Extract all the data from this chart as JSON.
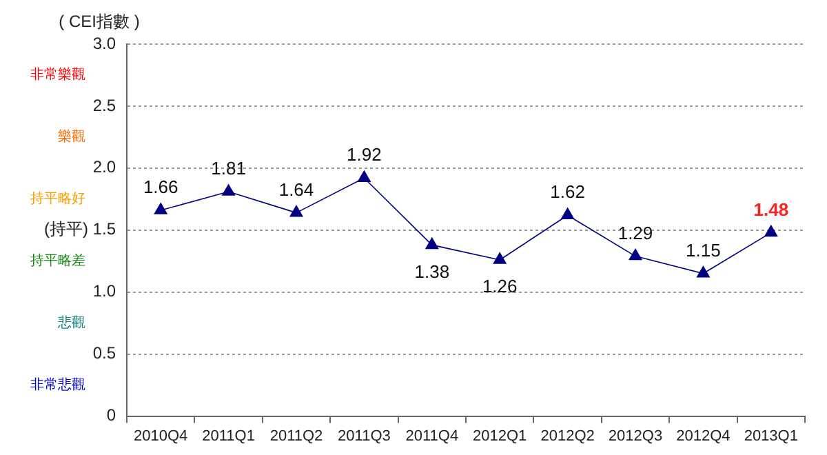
{
  "chart_data": {
    "type": "line",
    "ylabel": "( CEI指數 )",
    "categories": [
      "2010Q4",
      "2011Q1",
      "2011Q2",
      "2011Q3",
      "2011Q4",
      "2012Q1",
      "2012Q2",
      "2012Q3",
      "2012Q4",
      "2013Q1"
    ],
    "series": [
      {
        "color": "#000080",
        "values": [
          1.66,
          1.81,
          1.64,
          1.92,
          1.38,
          1.26,
          1.62,
          1.29,
          1.15,
          1.48
        ]
      }
    ],
    "ylim": [
      0,
      3
    ],
    "yticks": [
      0,
      0.5,
      {
        "value": 1,
        "label": "1.0"
      },
      {
        "value": 1.5,
        "label": "(持平) 1.5"
      },
      {
        "value": 2,
        "label": "2.0"
      },
      2.5,
      {
        "value": 3,
        "label": "3.0"
      }
    ],
    "grid": "y",
    "marker": "triangle",
    "line_style": "solid",
    "data_labels": true,
    "legend": false,
    "annotations": [
      "非常樂觀",
      "樂觀",
      "持平略好",
      "持平略差",
      "悲觀",
      "非常悲觀"
    ]
  }
}
